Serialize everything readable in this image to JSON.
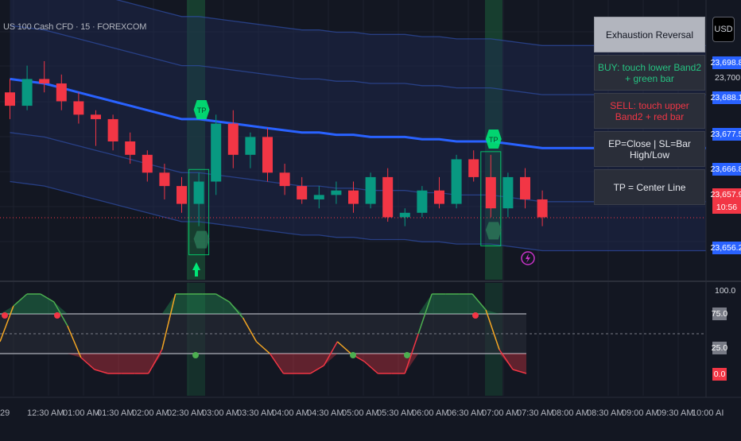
{
  "header": {
    "symbol_title": "US 100 Cash CFD · 15 · FOREXCOM"
  },
  "currency_button": {
    "label": "USD"
  },
  "info_panel": {
    "rows": [
      {
        "text": "Exhaustion Reversal",
        "style": "header"
      },
      {
        "text": "BUY: touch lower Band2 + green bar",
        "style": "buy"
      },
      {
        "text": "SELL: touch upper Band2 + red bar",
        "style": "sell"
      },
      {
        "text": "EP=Close | SL=Bar High/Low",
        "style": "white"
      },
      {
        "text": "TP = Center Line",
        "style": "white"
      }
    ]
  },
  "price_axis": {
    "plain_labels": [
      "23,700.0"
    ],
    "boxes": [
      {
        "text": "23,698.8",
        "color": "#2962ff"
      },
      {
        "text": "23,688.1",
        "color": "#2962ff"
      },
      {
        "text": "23,677.5",
        "color": "#2962ff"
      },
      {
        "text": "23,666.8",
        "color": "#2962ff"
      },
      {
        "text": "23,657.9",
        "color": "#f23645"
      },
      {
        "text": "10:56",
        "color": "#f23645"
      },
      {
        "text": "23,656.2",
        "color": "#2962ff"
      }
    ]
  },
  "oscillator_axis": {
    "top_label": "100.0",
    "boxes": [
      {
        "text": "75.0",
        "color": "#787b86"
      },
      {
        "text": "25.0",
        "color": "#787b86"
      },
      {
        "text": "0.0",
        "color": "#f23645"
      }
    ]
  },
  "time_axis": {
    "labels": [
      "29",
      "12:30 AM",
      "01:00 AM",
      "01:30 AM",
      "02:00 AM",
      "02:30 AM",
      "03:00 AM",
      "03:30 AM",
      "04:00 AM",
      "04:30 AM",
      "05:00 AM",
      "05:30 AM",
      "06:00 AM",
      "06:30 AM",
      "07:00 AM",
      "07:30 AM",
      "08:00 AM",
      "08:30 AM",
      "09:00 AM",
      "09:30 AM",
      "10:00 AI"
    ]
  },
  "markers": {
    "tp_label": "TP"
  },
  "colors": {
    "background": "#131722",
    "bull": "#089981",
    "bear": "#f23645",
    "signal_green": "#00e676",
    "center_line": "#2962ff"
  },
  "chart_data": {
    "type": "candlestick",
    "symbol": "US 100 Cash CFD",
    "interval": "15",
    "exchange": "FOREXCOM",
    "visible_y_axis_labels": [
      "23,700.0",
      "23,698.8",
      "23,688.1",
      "23,677.5",
      "23,666.8",
      "23,657.9",
      "23,656.2"
    ],
    "last_price": 23657.9,
    "candles": [
      {
        "o": 23686,
        "h": 23689,
        "l": 23680,
        "c": 23683
      },
      {
        "o": 23683,
        "h": 23692,
        "l": 23682,
        "c": 23689
      },
      {
        "o": 23689,
        "h": 23693,
        "l": 23686,
        "c": 23688
      },
      {
        "o": 23688,
        "h": 23690,
        "l": 23682,
        "c": 23684
      },
      {
        "o": 23684,
        "h": 23686,
        "l": 23679,
        "c": 23681
      },
      {
        "o": 23681,
        "h": 23682,
        "l": 23674,
        "c": 23680
      },
      {
        "o": 23680,
        "h": 23681,
        "l": 23673,
        "c": 23675
      },
      {
        "o": 23675,
        "h": 23677,
        "l": 23670,
        "c": 23672
      },
      {
        "o": 23672,
        "h": 23673,
        "l": 23666,
        "c": 23668
      },
      {
        "o": 23668,
        "h": 23670,
        "l": 23662,
        "c": 23665
      },
      {
        "o": 23665,
        "h": 23667,
        "l": 23659,
        "c": 23661
      },
      {
        "o": 23661,
        "h": 23668,
        "l": 23656,
        "c": 23666
      },
      {
        "o": 23666,
        "h": 23681,
        "l": 23663,
        "c": 23679
      },
      {
        "o": 23679,
        "h": 23682,
        "l": 23669,
        "c": 23672
      },
      {
        "o": 23672,
        "h": 23677,
        "l": 23669,
        "c": 23676
      },
      {
        "o": 23676,
        "h": 23678,
        "l": 23666,
        "c": 23668
      },
      {
        "o": 23668,
        "h": 23670,
        "l": 23663,
        "c": 23665
      },
      {
        "o": 23665,
        "h": 23667,
        "l": 23661,
        "c": 23662
      },
      {
        "o": 23662,
        "h": 23665,
        "l": 23660,
        "c": 23663
      },
      {
        "o": 23663,
        "h": 23666,
        "l": 23661,
        "c": 23664
      },
      {
        "o": 23664,
        "h": 23666,
        "l": 23659,
        "c": 23661
      },
      {
        "o": 23661,
        "h": 23668,
        "l": 23660,
        "c": 23667
      },
      {
        "o": 23667,
        "h": 23669,
        "l": 23657,
        "c": 23658
      },
      {
        "o": 23658,
        "h": 23660,
        "l": 23656,
        "c": 23659
      },
      {
        "o": 23659,
        "h": 23665,
        "l": 23658,
        "c": 23664
      },
      {
        "o": 23664,
        "h": 23667,
        "l": 23660,
        "c": 23661
      },
      {
        "o": 23661,
        "h": 23672,
        "l": 23660,
        "c": 23671
      },
      {
        "o": 23671,
        "h": 23673,
        "l": 23666,
        "c": 23667
      },
      {
        "o": 23667,
        "h": 23672,
        "l": 23658,
        "c": 23660
      },
      {
        "o": 23660,
        "h": 23668,
        "l": 23658,
        "c": 23667
      },
      {
        "o": 23667,
        "h": 23669,
        "l": 23660,
        "c": 23662
      },
      {
        "o": 23662,
        "h": 23664,
        "l": 23656,
        "c": 23658
      }
    ],
    "bands": {
      "center": [
        23689,
        23688.5,
        23688,
        23687,
        23686,
        23685,
        23684,
        23683,
        23682,
        23681,
        23680,
        23680,
        23679.5,
        23679,
        23678.5,
        23678,
        23677.5,
        23677,
        23677,
        23676.5,
        23676.5,
        23676,
        23676,
        23676,
        23675.5,
        23675.5,
        23675,
        23675,
        23675,
        23674.5,
        23674,
        23673.5
      ]
    },
    "signals": [
      {
        "type": "buy",
        "bar": 11,
        "label": "TP"
      },
      {
        "type": "sell",
        "bar": 28,
        "label": "TP"
      }
    ],
    "oscillator": {
      "levels": [
        100,
        75,
        25,
        0
      ],
      "values": [
        40,
        85,
        100,
        100,
        90,
        60,
        20,
        5,
        0,
        0,
        0,
        0,
        30,
        100,
        100,
        100,
        100,
        90,
        70,
        40,
        25,
        0,
        0,
        0,
        10,
        40,
        25,
        15,
        0,
        0,
        0,
        50,
        100,
        100,
        100,
        100,
        80,
        30,
        5,
        0
      ]
    }
  }
}
